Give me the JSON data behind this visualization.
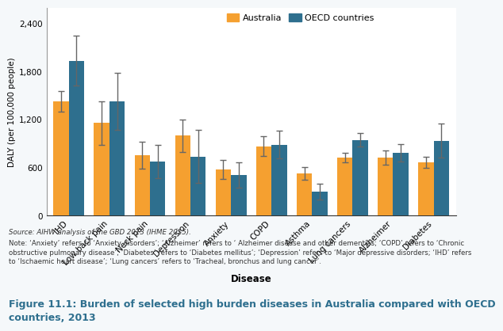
{
  "categories": [
    "IHD",
    "Low back pain",
    "Neck pain",
    "Depression",
    "Anxiety",
    "COPD",
    "Asthma",
    "Lung cancers",
    "Alzheimer",
    "Diabetes"
  ],
  "australia_values": [
    1430,
    1160,
    760,
    1000,
    580,
    870,
    530,
    730,
    730,
    670
  ],
  "oecd_values": [
    1940,
    1430,
    680,
    740,
    510,
    890,
    300,
    950,
    790,
    940
  ],
  "australia_errors_low": [
    130,
    270,
    170,
    200,
    120,
    120,
    80,
    60,
    90,
    70
  ],
  "australia_errors_high": [
    130,
    270,
    170,
    200,
    120,
    120,
    80,
    60,
    90,
    70
  ],
  "oecd_errors_low": [
    310,
    360,
    210,
    330,
    160,
    170,
    100,
    80,
    110,
    210
  ],
  "oecd_errors_high": [
    310,
    360,
    210,
    330,
    160,
    170,
    100,
    80,
    110,
    210
  ],
  "australia_color": "#F5A030",
  "oecd_color": "#2E6F8E",
  "bar_width": 0.38,
  "ylim": [
    0,
    2600
  ],
  "yticks": [
    0,
    600,
    1200,
    1800,
    2400
  ],
  "ylabel": "DALY (per 100,000 people)",
  "xlabel": "Disease",
  "legend_labels": [
    "Australia",
    "OECD countries"
  ],
  "source_text": "Source: AIHW analysis of the GBD 2013 (IHME 2015).",
  "note_text": "Note: ‘Anxiety’ refers to ‘Anxiety disorders’; ‘Alzheimer’ refers to ‘ Alzheimer disease and other dementias; ‘COPD’ refers to ‘Chronic\nobstructive pulmonary disease’; ‘Diabetes’ refers to ‘Diabetes mellitus’; ‘Depression’ refers to ‘Major depressive disorders; ‘IHD’ refers\nto ‘Ischaemic heart disease’; ‘Lung cancers’ refers to ‘Tracheal, bronchus and lung cancer’.",
  "figure_title": "Figure 11.1: Burden of selected high burden diseases in Australia compared with OECD\ncountries, 2013",
  "background_color": "#f5f8fa",
  "plot_bg_color": "#ffffff",
  "error_color": "#666666",
  "capsize": 3,
  "title_color": "#2E6F8E"
}
